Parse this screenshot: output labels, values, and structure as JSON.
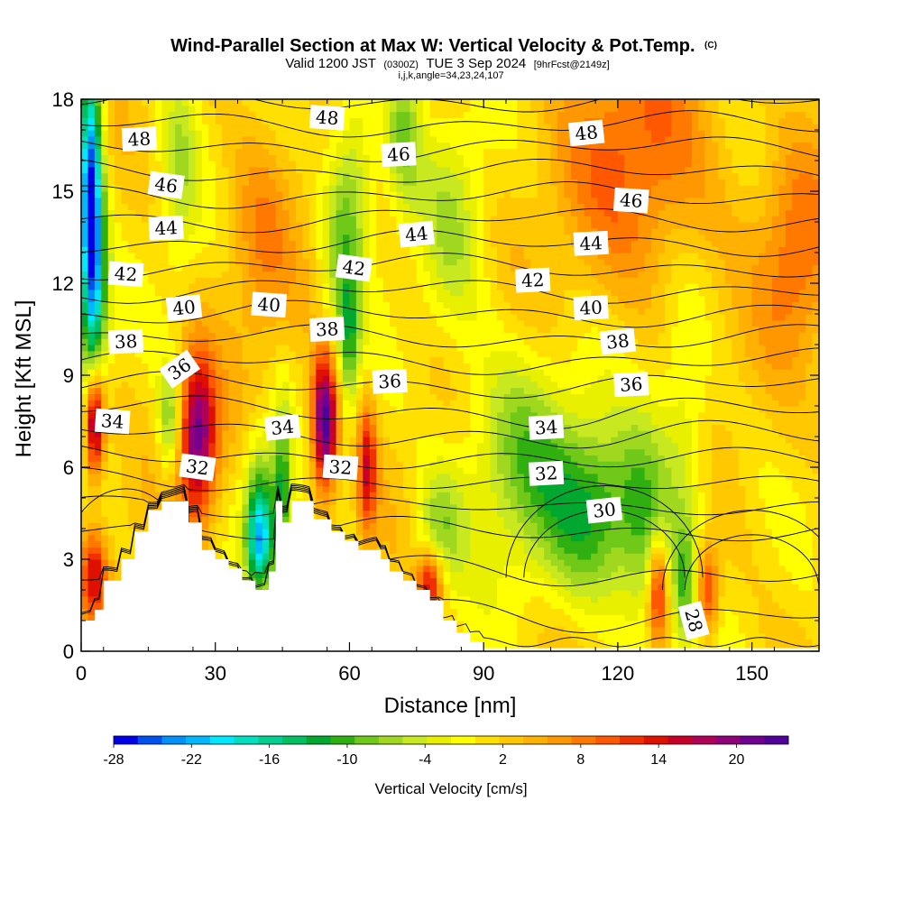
{
  "chart_data": {
    "type": "heatmap",
    "title": "Wind-Parallel Section at Max W: Vertical Velocity & Pot.Temp.",
    "title_mark": "(C)",
    "subtitle": {
      "prefix": "Valid 1200 JST",
      "utc": "(0300Z)",
      "date": "TUE 3 Sep 2024",
      "forecast": "[9hrFcst@2149z]"
    },
    "subtitle2": "i,j,k,angle=34,23,24,107",
    "xlabel": "Distance [nm]",
    "ylabel": "Height [Kft MSL]",
    "xlim": [
      0,
      165
    ],
    "ylim": [
      0,
      18
    ],
    "xticks": [
      0,
      30,
      60,
      90,
      120,
      150
    ],
    "yticks": [
      0,
      3,
      6,
      9,
      12,
      15,
      18
    ],
    "colorbar": {
      "label": "Vertical Velocity [cm/s]",
      "ticks": [
        -28,
        -22,
        -16,
        -10,
        -4,
        2,
        8,
        14,
        20
      ],
      "min": -28,
      "max": 24,
      "colors": [
        "#0000e8",
        "#0050f0",
        "#0090f8",
        "#00b8ff",
        "#00e8ff",
        "#00e0c0",
        "#00d090",
        "#00c060",
        "#00a830",
        "#30b010",
        "#70c818",
        "#a0d820",
        "#c8e820",
        "#e8f000",
        "#ffff00",
        "#ffe000",
        "#ffc800",
        "#ffb000",
        "#ff9800",
        "#ff7800",
        "#ff5800",
        "#f03000",
        "#e01000",
        "#c80028",
        "#b00058",
        "#900078",
        "#700090",
        "#500098"
      ]
    },
    "terrain_profile": [
      [
        0,
        1
      ],
      [
        3,
        1
      ],
      [
        3,
        1.35
      ],
      [
        5,
        1.35
      ],
      [
        5,
        2.3
      ],
      [
        9,
        2.3
      ],
      [
        9,
        3
      ],
      [
        12,
        3
      ],
      [
        12,
        3.9
      ],
      [
        15,
        3.9
      ],
      [
        15,
        4.6
      ],
      [
        18,
        4.6
      ],
      [
        18,
        4.9
      ],
      [
        24,
        4.9
      ],
      [
        24,
        4.2
      ],
      [
        27,
        4.2
      ],
      [
        27,
        3.3
      ],
      [
        30,
        3.3
      ],
      [
        30,
        3
      ],
      [
        33,
        3
      ],
      [
        33,
        2.7
      ],
      [
        36,
        2.7
      ],
      [
        36,
        2.3
      ],
      [
        39,
        2.3
      ],
      [
        39,
        2
      ],
      [
        42,
        2
      ],
      [
        42,
        2.6
      ],
      [
        43.5,
        2.6
      ],
      [
        43.5,
        4.9
      ],
      [
        45,
        4.9
      ],
      [
        45,
        4.2
      ],
      [
        47,
        4.2
      ],
      [
        47,
        4.9
      ],
      [
        52,
        4.9
      ],
      [
        52,
        4.3
      ],
      [
        56,
        4.3
      ],
      [
        56,
        3.9
      ],
      [
        59,
        3.9
      ],
      [
        59,
        3.6
      ],
      [
        62,
        3.6
      ],
      [
        62,
        3.3
      ],
      [
        67,
        3.3
      ],
      [
        67,
        3
      ],
      [
        69,
        3
      ],
      [
        69,
        2.6
      ],
      [
        72,
        2.6
      ],
      [
        72,
        2.3
      ],
      [
        75,
        2.3
      ],
      [
        75,
        2
      ],
      [
        78,
        2
      ],
      [
        78,
        1.65
      ],
      [
        81,
        1.65
      ],
      [
        81,
        1
      ],
      [
        84,
        1
      ],
      [
        84,
        0.6
      ],
      [
        87,
        0.6
      ],
      [
        87,
        0.3
      ],
      [
        90,
        0.3
      ],
      [
        90,
        0.1
      ],
      [
        165,
        0.1
      ]
    ],
    "theta_contours": [
      28,
      29,
      30,
      31,
      32,
      33,
      34,
      35,
      36,
      37,
      38,
      39,
      40,
      41,
      42,
      43,
      44,
      45,
      46,
      47,
      48,
      49
    ],
    "theta_labels": [
      {
        "text": "48",
        "x": 13,
        "y": 16.7
      },
      {
        "text": "48",
        "x": 55,
        "y": 17.4
      },
      {
        "text": "48",
        "x": 113,
        "y": 16.9
      },
      {
        "text": "46",
        "x": 19,
        "y": 15.2
      },
      {
        "text": "46",
        "x": 71,
        "y": 16.2
      },
      {
        "text": "46",
        "x": 123,
        "y": 14.7
      },
      {
        "text": "44",
        "x": 19,
        "y": 13.8
      },
      {
        "text": "44",
        "x": 75,
        "y": 13.6
      },
      {
        "text": "44",
        "x": 114,
        "y": 13.3
      },
      {
        "text": "42",
        "x": 10,
        "y": 12.3
      },
      {
        "text": "42",
        "x": 61,
        "y": 12.5
      },
      {
        "text": "42",
        "x": 101,
        "y": 12.1
      },
      {
        "text": "40",
        "x": 23,
        "y": 11.2
      },
      {
        "text": "40",
        "x": 42,
        "y": 11.3
      },
      {
        "text": "40",
        "x": 114,
        "y": 11.2
      },
      {
        "text": "38",
        "x": 10,
        "y": 10.1
      },
      {
        "text": "38",
        "x": 55,
        "y": 10.5
      },
      {
        "text": "38",
        "x": 120,
        "y": 10.1
      },
      {
        "text": "36",
        "x": 22,
        "y": 9.2
      },
      {
        "text": "36",
        "x": 69,
        "y": 8.8
      },
      {
        "text": "36",
        "x": 123,
        "y": 8.7
      },
      {
        "text": "34",
        "x": 7,
        "y": 7.5
      },
      {
        "text": "34",
        "x": 45,
        "y": 7.3
      },
      {
        "text": "34",
        "x": 104,
        "y": 7.3
      },
      {
        "text": "32",
        "x": 26,
        "y": 6
      },
      {
        "text": "32",
        "x": 58,
        "y": 6
      },
      {
        "text": "32",
        "x": 104,
        "y": 5.8
      },
      {
        "text": "30",
        "x": 117,
        "y": 4.6
      },
      {
        "text": "28",
        "x": 137,
        "y": 1
      }
    ],
    "w_features": [
      {
        "x": 2,
        "y": 15.5,
        "sx": 1.8,
        "sy": 3.5,
        "w": -24
      },
      {
        "x": 3,
        "y": 12,
        "sx": 2.2,
        "sy": 2.5,
        "w": -14
      },
      {
        "x": 22,
        "y": 16,
        "sx": 3,
        "sy": 2.5,
        "w": -6
      },
      {
        "x": 58,
        "y": 13,
        "sx": 3,
        "sy": 3,
        "w": -8
      },
      {
        "x": 62,
        "y": 15.5,
        "sx": 3,
        "sy": 2.5,
        "w": -6
      },
      {
        "x": 72,
        "y": 17,
        "sx": 3,
        "sy": 1.8,
        "w": -9
      },
      {
        "x": 83,
        "y": 14,
        "sx": 5,
        "sy": 2.5,
        "w": -6
      },
      {
        "x": 20,
        "y": 7.5,
        "sx": 2,
        "sy": 1.3,
        "w": -10
      },
      {
        "x": 40,
        "y": 5,
        "sx": 2.5,
        "sy": 1.5,
        "w": -12
      },
      {
        "x": 45,
        "y": 5,
        "sx": 1.5,
        "sy": 2.2,
        "w": -12
      },
      {
        "x": 60,
        "y": 10,
        "sx": 1.5,
        "sy": 1.5,
        "w": -8
      },
      {
        "x": 98,
        "y": 6.5,
        "sx": 9,
        "sy": 2.5,
        "w": -9
      },
      {
        "x": 115,
        "y": 4.5,
        "sx": 8,
        "sy": 2,
        "w": -12
      },
      {
        "x": 126,
        "y": 4,
        "sx": 4,
        "sy": 2.5,
        "w": -8
      },
      {
        "x": 135,
        "y": 7,
        "sx": 4,
        "sy": 3,
        "w": -6
      },
      {
        "x": 135,
        "y": 2,
        "sx": 2,
        "sy": 1.5,
        "w": -9
      },
      {
        "x": 80,
        "y": 4,
        "sx": 4,
        "sy": 1.5,
        "w": -8
      },
      {
        "x": 3,
        "y": 7.5,
        "sx": 1.5,
        "sy": 1.2,
        "w": 22
      },
      {
        "x": 3,
        "y": 2.5,
        "sx": 2,
        "sy": 1,
        "w": 12
      },
      {
        "x": 26,
        "y": 7,
        "sx": 3,
        "sy": 1.8,
        "w": 20
      },
      {
        "x": 54.5,
        "y": 7.5,
        "sx": 2,
        "sy": 1.6,
        "w": 24
      },
      {
        "x": 64,
        "y": 6,
        "sx": 1.5,
        "sy": 1.5,
        "w": 13
      },
      {
        "x": 78,
        "y": 2.2,
        "sx": 2,
        "sy": 0.8,
        "w": 14
      },
      {
        "x": 129,
        "y": 2,
        "sx": 1.5,
        "sy": 1.2,
        "w": 14
      },
      {
        "x": 140,
        "y": 2,
        "sx": 1.8,
        "sy": 1,
        "w": 12
      },
      {
        "x": 125,
        "y": 16,
        "sx": 12,
        "sy": 3,
        "w": 8
      },
      {
        "x": 160,
        "y": 13,
        "sx": 6,
        "sy": 2.5,
        "w": 7
      },
      {
        "x": 40,
        "y": 13.5,
        "sx": 5,
        "sy": 2.5,
        "w": 5
      },
      {
        "x": 40,
        "y": 3.5,
        "sx": 2,
        "sy": 1,
        "w": -15
      }
    ]
  }
}
